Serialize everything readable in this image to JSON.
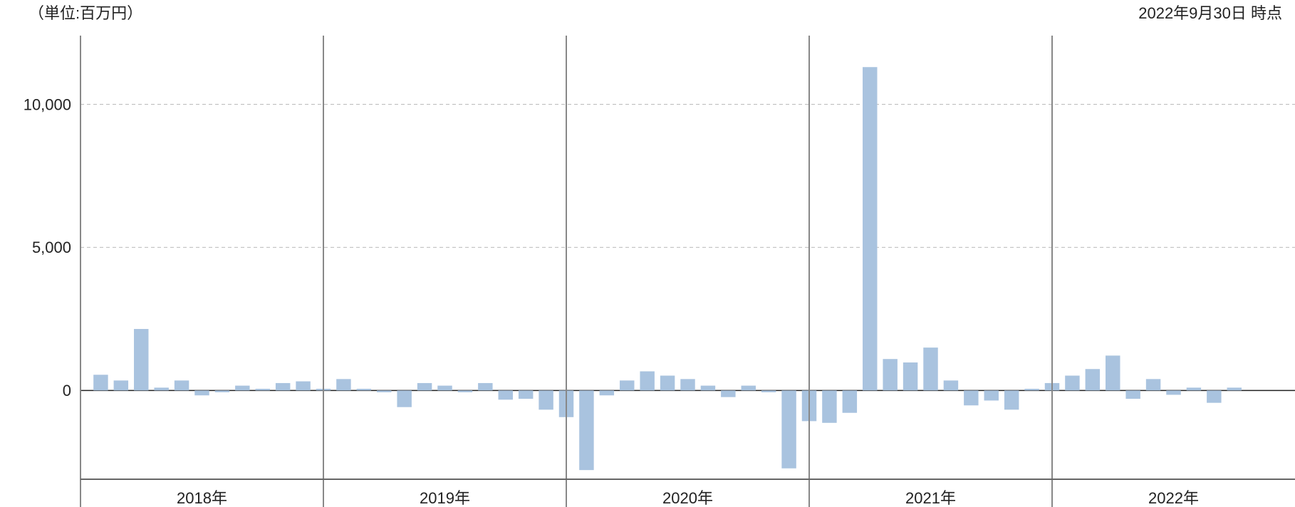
{
  "chart_data": {
    "type": "bar",
    "unit_note": "（単位:百万円）",
    "as_of": "2022年9月30日 時点",
    "color": "#a9c3df",
    "groups": [
      {
        "label": "2018年",
        "values": [
          550,
          350,
          2150,
          100,
          350,
          -170,
          -60,
          170,
          60,
          260,
          320,
          60
        ]
      },
      {
        "label": "2019年",
        "values": [
          400,
          60,
          -60,
          -580,
          260,
          170,
          -60,
          260,
          -320,
          -290,
          -670,
          -930
        ]
      },
      {
        "label": "2020年",
        "values": [
          -2780,
          -170,
          350,
          670,
          520,
          400,
          170,
          -230,
          170,
          -60,
          -2720,
          -1070
        ]
      },
      {
        "label": "2021年",
        "values": [
          -1130,
          -780,
          11300,
          1100,
          980,
          1500,
          350,
          -520,
          -350,
          -670,
          60,
          260
        ]
      },
      {
        "label": "2022年",
        "values": [
          520,
          750,
          1220,
          -290,
          400,
          -150,
          100,
          -430,
          100
        ]
      }
    ],
    "ylim": [
      -3100,
      12400
    ],
    "yticks": [
      0,
      {
        "value": 5000,
        "label": "5,000"
      },
      {
        "value": 10000,
        "label": "10,000"
      }
    ],
    "grid": true
  }
}
